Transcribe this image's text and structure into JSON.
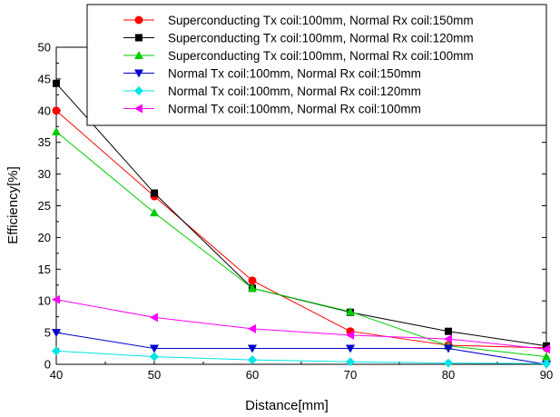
{
  "chart_data": {
    "type": "line",
    "title": "",
    "xlabel": "Distance[mm]",
    "ylabel": "Efficiency[%]",
    "xlim": [
      40,
      90
    ],
    "ylim": [
      0,
      50
    ],
    "x_ticks": [
      "40",
      "50",
      "60",
      "70",
      "80",
      "90"
    ],
    "y_ticks": [
      "0",
      "5",
      "10",
      "15",
      "20",
      "25",
      "30",
      "35",
      "40",
      "45",
      "50"
    ],
    "x": [
      40,
      50,
      60,
      70,
      80,
      90
    ],
    "grid": false,
    "legend_position": "top-right",
    "series": [
      {
        "name": "Superconducting Tx coil:100mm, Normal Rx coil:150mm",
        "marker": "circle",
        "color": "#ff0000",
        "values": [
          40,
          26.5,
          13.2,
          5.2,
          3.0,
          2.6
        ]
      },
      {
        "name": "Superconducting Tx coil:100mm, Normal Rx coil:120mm",
        "marker": "square",
        "color": "#000000",
        "values": [
          44.3,
          27.0,
          12.0,
          8.2,
          5.2,
          2.9
        ]
      },
      {
        "name": "Superconducting Tx coil:100mm, Normal Rx coil:100mm",
        "marker": "triangle-up",
        "color": "#00cc00",
        "values": [
          36.7,
          23.9,
          12.0,
          8.3,
          2.9,
          1.2
        ]
      },
      {
        "name": "Normal Tx coil:100mm, Normal Rx coil:150mm",
        "marker": "triangle-down",
        "color": "#0000cc",
        "values": [
          5.0,
          2.5,
          2.5,
          2.5,
          2.5,
          0.0
        ]
      },
      {
        "name": "Normal Tx coil:100mm, Normal Rx coil:120mm",
        "marker": "diamond",
        "color": "#00e5e5",
        "values": [
          2.1,
          1.2,
          0.7,
          0.4,
          0.2,
          0.1
        ]
      },
      {
        "name": "Normal Tx coil:100mm, Normal Rx coil:100mm",
        "marker": "triangle-left",
        "color": "#ff00ff",
        "values": [
          10.2,
          7.4,
          5.6,
          4.6,
          4.0,
          2.4
        ]
      }
    ]
  }
}
